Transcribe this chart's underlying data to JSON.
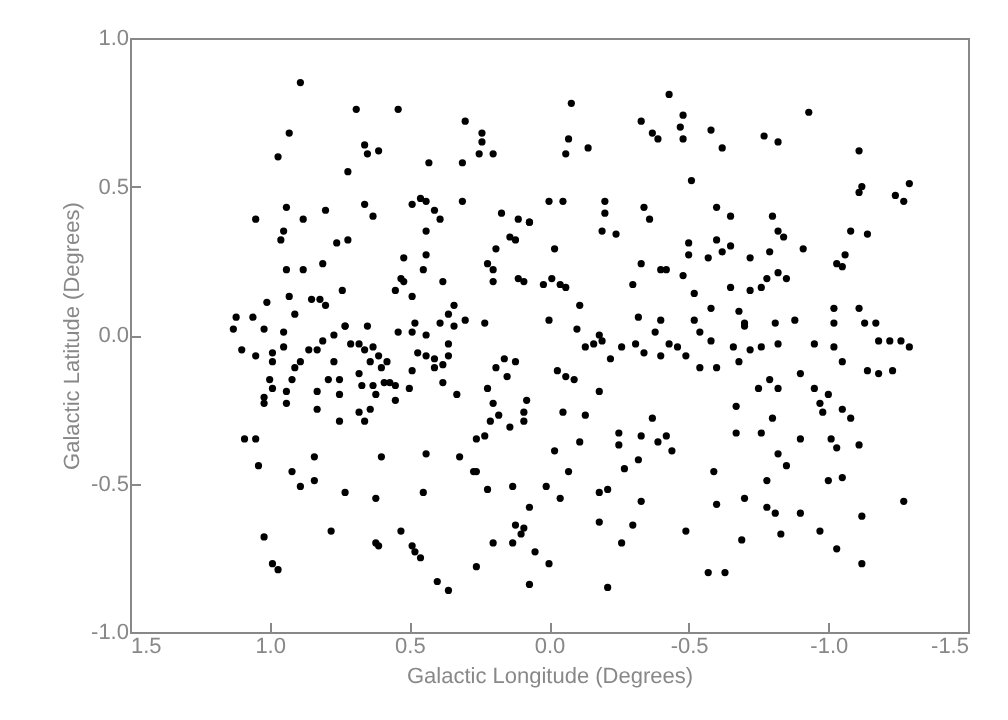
{
  "chart_data": {
    "type": "scatter",
    "xlabel": "Galactic Longitude (Degrees)",
    "ylabel": "Galactic Latitude (Degrees)",
    "color": "#000000",
    "marker": "circle",
    "grid": false,
    "xlim": [
      1.5,
      -1.5
    ],
    "xticks": [
      1.5,
      {
        "value": 1,
        "label": "1.0"
      },
      0.5,
      {
        "value": 0,
        "label": "0.0"
      },
      -0.5,
      {
        "value": -1,
        "label": "-1.0"
      },
      -1.5
    ],
    "ylim": [
      -1,
      1
    ],
    "yticks": [
      {
        "value": -1,
        "label": "-1.0"
      },
      -0.5,
      {
        "value": 0,
        "label": "0.0"
      },
      0.5,
      {
        "value": 1,
        "label": "1.0"
      }
    ],
    "x": [
      0.89,
      0.69,
      0.54,
      0.93,
      0.97,
      0.66,
      0.65,
      0.61,
      0.72,
      0.43,
      0.3,
      0.24,
      0.24,
      0.25,
      0.2,
      0.31,
      1.05,
      0.94,
      0.88,
      0.8,
      0.95,
      0.96,
      0.76,
      0.72,
      0.66,
      0.63,
      0.49,
      0.46,
      0.44,
      0.41,
      0.39,
      0.44,
      0.31,
      0.17,
      0.11,
      0.14,
      0.12,
      0.07,
      0.94,
      0.88,
      0.81,
      0.52,
      0.44,
      0.45,
      0.53,
      0.52,
      0.38,
      0.22,
      0.2,
      0.19,
      0.2,
      0.11,
      0.09,
      1.01,
      0.93,
      0.91,
      0.85,
      0.82,
      0.8,
      0.74,
      0.55,
      0.49,
      0.34,
      0.36,
      0.39,
      0.48,
      1.12,
      1.06,
      1.13,
      0.73,
      0.65,
      0.3,
      0.23,
      0.34,
      -0.08,
      -0.07,
      -0.06,
      -0.14,
      -0.43,
      -0.33,
      -0.37,
      -0.39,
      -0.48,
      -0.47,
      -0.48,
      -0.58,
      -0.62,
      -0.77,
      -0.82,
      -0.93,
      -1.11,
      -0.51,
      0.0,
      -0.05,
      0.07,
      -0.2,
      -0.2,
      -0.19,
      -0.24,
      -0.02,
      -0.34,
      -0.36,
      -0.6,
      -0.65,
      -0.5,
      -0.5,
      -0.57,
      -0.6,
      -0.62,
      -0.65,
      -0.72,
      -0.8,
      -0.82,
      -0.84,
      -0.79,
      -0.82,
      -0.85,
      -0.91,
      -1.12,
      -1.11,
      -1.24,
      -1.27,
      -1.29,
      -1.08,
      -1.14,
      -1.06,
      -1.03,
      -1.05,
      -0.01,
      0.02,
      -0.04,
      -0.06,
      -0.33,
      -0.4,
      -0.42,
      -0.48,
      -0.3,
      -0.52,
      -0.65,
      -0.72,
      -0.76,
      -0.78,
      -0.11,
      0.0,
      -0.32,
      -0.4,
      -0.58,
      -0.68,
      -0.7,
      -0.81,
      -0.88,
      -1.02,
      -1.11,
      -1.02,
      -1.13,
      -1.17,
      1.1,
      1.05,
      1.02,
      0.95,
      0.95,
      0.99,
      0.99,
      0.91,
      0.89,
      1.0,
      0.99,
      0.94,
      0.92,
      1.02,
      1.02,
      0.94,
      0.86,
      0.83,
      0.81,
      0.77,
      0.73,
      0.77,
      0.79,
      0.75,
      0.83,
      0.83,
      0.75,
      0.75,
      0.71,
      0.68,
      0.66,
      0.63,
      0.61,
      0.64,
      0.68,
      0.67,
      0.63,
      0.62,
      0.59,
      0.57,
      0.55,
      0.6,
      0.58,
      0.68,
      0.66,
      0.64,
      0.55,
      0.5,
      0.49,
      0.54,
      0.49,
      0.44,
      0.47,
      0.44,
      0.41,
      0.38,
      0.41,
      0.36,
      0.36,
      0.38,
      0.33,
      0.22,
      0.2,
      0.18,
      0.21,
      0.19,
      0.16,
      0.15,
      0.12,
      0.14,
      0.08,
      0.09,
      0.09,
      0.23,
      0.26,
      1.09,
      1.05,
      1.04,
      0.92,
      0.84,
      0.84,
      0.89,
      0.73,
      0.6,
      0.62,
      0.44,
      0.45,
      0.32,
      0.27,
      0.26,
      0.22,
      0.13,
      0.07,
      1.02,
      0.99,
      0.97,
      0.78,
      0.62,
      0.61,
      0.53,
      0.49,
      0.48,
      0.46,
      0.4,
      0.36,
      0.26,
      0.2,
      0.12,
      0.09,
      0.1,
      0.13,
      0.05,
      0.07,
      -0.1,
      -0.13,
      -0.16,
      -0.18,
      -0.19,
      -0.22,
      -0.26,
      -0.31,
      -0.34,
      -0.38,
      -0.4,
      -0.43,
      -0.46,
      -0.49,
      -0.52,
      -0.54,
      -0.58,
      -0.54,
      -0.6,
      -0.66,
      -0.7,
      -0.72,
      -0.76,
      -0.82,
      -0.68,
      -0.75,
      -0.82,
      -0.79,
      -0.9,
      -0.95,
      -1.02,
      -1.05,
      -1.18,
      -1.22,
      -1.26,
      -1.29,
      -1.14,
      -1.18,
      -1.23,
      -0.03,
      -0.06,
      -0.09,
      -0.95,
      -0.97,
      -1.0,
      -1.05,
      -1.08,
      -0.05,
      -0.13,
      -0.18,
      -0.25,
      -0.25,
      -0.37,
      -0.39,
      -0.42,
      -0.44,
      -0.33,
      -0.32,
      -0.11,
      -0.02,
      -0.07,
      -0.27,
      0.01,
      -0.04,
      -0.18,
      -0.21,
      -0.18,
      -0.3,
      -0.33,
      -0.26,
      0.0,
      -0.21,
      -0.49,
      -0.59,
      -0.6,
      -0.57,
      -0.63,
      -0.67,
      -0.67,
      -0.7,
      -0.69,
      -0.76,
      -0.8,
      -0.82,
      -0.85,
      -0.78,
      -0.78,
      -0.81,
      -0.83,
      -0.9,
      -0.9,
      -0.98,
      -1.01,
      -1.03,
      -1.05,
      -1.0,
      -1.11,
      -0.97,
      -1.03,
      -1.12,
      -1.12,
      -1.27
    ],
    "values": [
      0.85,
      0.76,
      0.76,
      0.68,
      0.6,
      0.64,
      0.61,
      0.62,
      0.55,
      0.58,
      0.72,
      0.68,
      0.65,
      0.61,
      0.61,
      0.58,
      0.39,
      0.43,
      0.39,
      0.42,
      0.35,
      0.32,
      0.31,
      0.32,
      0.44,
      0.4,
      0.44,
      0.46,
      0.45,
      0.42,
      0.39,
      0.35,
      0.45,
      0.41,
      0.39,
      0.33,
      0.32,
      0.38,
      0.22,
      0.22,
      0.24,
      0.26,
      0.27,
      0.22,
      0.19,
      0.18,
      0.18,
      0.24,
      0.22,
      0.29,
      0.18,
      0.19,
      0.18,
      0.11,
      0.13,
      0.07,
      0.12,
      0.12,
      0.1,
      0.15,
      0.15,
      0.13,
      0.1,
      0.07,
      0.04,
      0.04,
      0.06,
      0.06,
      0.02,
      0.03,
      0.03,
      0.05,
      0.04,
      0.03,
      0.78,
      0.66,
      0.61,
      0.63,
      0.81,
      0.72,
      0.68,
      0.66,
      0.74,
      0.7,
      0.66,
      0.69,
      0.63,
      0.67,
      0.65,
      0.75,
      0.62,
      0.52,
      0.45,
      0.45,
      0.38,
      0.45,
      0.41,
      0.35,
      0.34,
      0.29,
      0.43,
      0.39,
      0.43,
      0.4,
      0.31,
      0.27,
      0.26,
      0.32,
      0.28,
      0.3,
      0.26,
      0.4,
      0.35,
      0.33,
      0.28,
      0.21,
      0.19,
      0.29,
      0.5,
      0.48,
      0.47,
      0.45,
      0.51,
      0.35,
      0.34,
      0.27,
      0.24,
      0.23,
      0.19,
      0.17,
      0.17,
      0.16,
      0.24,
      0.22,
      0.22,
      0.2,
      0.17,
      0.14,
      0.16,
      0.15,
      0.16,
      0.19,
      0.1,
      0.05,
      0.06,
      0.05,
      0.09,
      0.08,
      0.04,
      0.04,
      0.05,
      0.09,
      0.09,
      0.04,
      0.04,
      0.04,
      -0.05,
      -0.07,
      0.02,
      0.01,
      -0.04,
      -0.06,
      -0.09,
      -0.11,
      -0.09,
      -0.15,
      -0.18,
      -0.19,
      -0.15,
      -0.21,
      -0.23,
      -0.23,
      -0.05,
      -0.05,
      -0.02,
      0.0,
      0.03,
      -0.09,
      -0.15,
      -0.15,
      -0.19,
      -0.25,
      -0.2,
      -0.29,
      -0.03,
      -0.03,
      -0.05,
      -0.04,
      -0.07,
      -0.09,
      -0.13,
      -0.17,
      -0.17,
      -0.2,
      -0.16,
      -0.16,
      -0.17,
      -0.11,
      -0.09,
      -0.26,
      -0.29,
      -0.25,
      -0.22,
      -0.18,
      -0.12,
      0.01,
      0.01,
      0.0,
      -0.06,
      -0.07,
      -0.08,
      -0.1,
      -0.11,
      -0.07,
      -0.03,
      -0.16,
      -0.2,
      -0.18,
      -0.23,
      -0.27,
      -0.29,
      -0.11,
      -0.08,
      -0.14,
      -0.09,
      -0.31,
      -0.22,
      -0.26,
      -0.29,
      -0.34,
      -0.35,
      -0.35,
      -0.35,
      -0.44,
      -0.46,
      -0.41,
      -0.49,
      -0.51,
      -0.53,
      -0.41,
      -0.55,
      -0.4,
      -0.53,
      -0.41,
      -0.46,
      -0.46,
      -0.52,
      -0.51,
      -0.58,
      -0.68,
      -0.77,
      -0.79,
      -0.66,
      -0.7,
      -0.71,
      -0.66,
      -0.71,
      -0.73,
      -0.75,
      -0.83,
      -0.86,
      -0.78,
      -0.7,
      -0.64,
      -0.65,
      -0.67,
      -0.7,
      -0.73,
      -0.84,
      0.02,
      -0.04,
      -0.03,
      0.0,
      -0.02,
      -0.08,
      -0.04,
      -0.03,
      -0.06,
      0.01,
      -0.07,
      -0.03,
      -0.04,
      -0.07,
      0.05,
      0.01,
      -0.02,
      -0.11,
      -0.11,
      -0.04,
      0.03,
      -0.05,
      -0.04,
      -0.03,
      -0.09,
      -0.18,
      -0.18,
      -0.15,
      -0.13,
      -0.03,
      -0.04,
      -0.09,
      -0.02,
      -0.02,
      -0.02,
      -0.04,
      -0.12,
      -0.13,
      -0.12,
      -0.12,
      -0.14,
      -0.15,
      -0.18,
      -0.23,
      -0.2,
      -0.25,
      -0.28,
      -0.26,
      -0.27,
      -0.19,
      -0.33,
      -0.37,
      -0.28,
      -0.36,
      -0.34,
      -0.39,
      -0.34,
      -0.42,
      -0.36,
      -0.39,
      -0.46,
      -0.45,
      -0.51,
      -0.55,
      -0.53,
      -0.52,
      -0.63,
      -0.64,
      -0.56,
      -0.7,
      -0.77,
      -0.85,
      -0.66,
      -0.46,
      -0.57,
      -0.8,
      -0.8,
      -0.24,
      -0.33,
      -0.55,
      -0.69,
      -0.33,
      -0.28,
      -0.4,
      -0.44,
      -0.49,
      -0.58,
      -0.6,
      -0.67,
      -0.6,
      -0.35,
      -0.26,
      -0.35,
      -0.38,
      -0.48,
      -0.49,
      -0.37,
      -0.66,
      -0.72,
      -0.61,
      -0.77,
      -0.56
    ]
  }
}
